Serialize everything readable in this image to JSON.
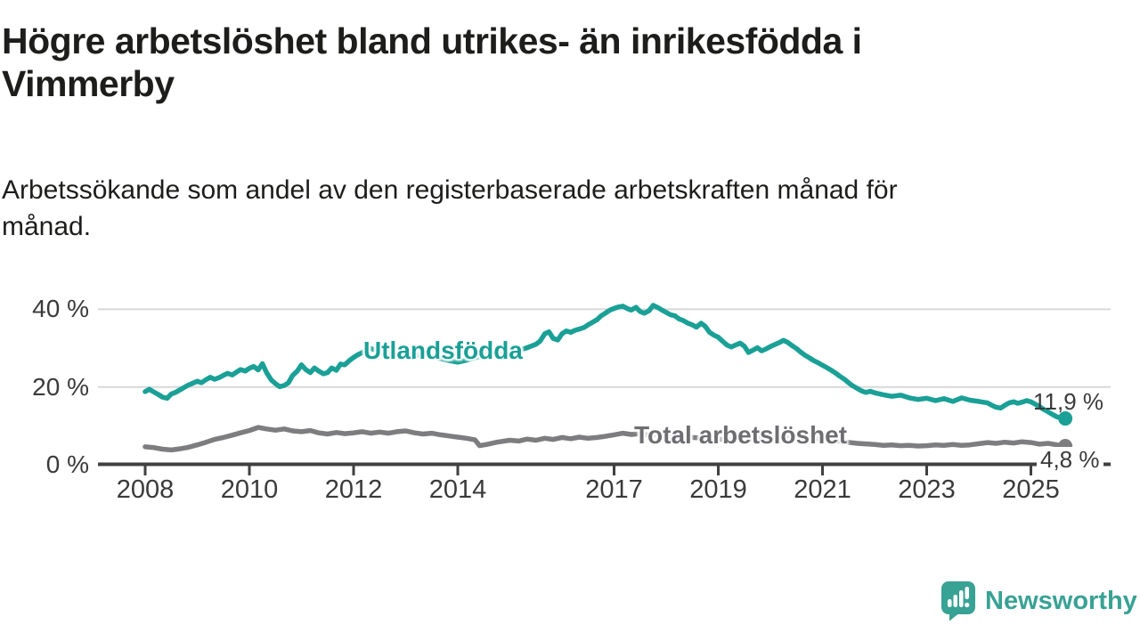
{
  "header": {
    "title_lines": [
      "Högre arbetslöshet bland utrikes- än inrikesfödda i",
      "Vimmerby"
    ],
    "subtitle_lines": [
      "Arbetssökande som andel av den registerbaserade arbetskraften månad för",
      "månad."
    ]
  },
  "footer": {
    "brand": "Newsworthy",
    "brand_color": "#38a294"
  },
  "chart_data": {
    "type": "line",
    "title": "Högre arbetslöshet bland utrikes- än inrikesfödda i Vimmerby",
    "subtitle": "Arbetssökande som andel av den registerbaserade arbetskraften månad för månad.",
    "unit": "%",
    "grid": "horizontal",
    "x_axis": {
      "ticks": [
        2008,
        2010,
        2012,
        2014,
        2017,
        2019,
        2021,
        2023,
        2025
      ],
      "range": [
        2007.6,
        2026.2
      ]
    },
    "y_axis": {
      "ticks": [
        {
          "label": "0 %",
          "value": 0
        },
        {
          "label": "20 %",
          "value": 20
        },
        {
          "label": "40 %",
          "value": 40
        }
      ],
      "range": [
        0,
        44
      ]
    },
    "colors": {
      "axis": "#404040",
      "gridline": "#d8d8d8",
      "text": "#3a3a3a"
    },
    "series": [
      {
        "name": "Utlandsfödda",
        "color": "#1aa096",
        "end_label": "11,9 %",
        "end_value": 11.9,
        "points": [
          [
            2008.0,
            18.8
          ],
          [
            2008.08,
            19.4
          ],
          [
            2008.17,
            18.7
          ],
          [
            2008.25,
            18.1
          ],
          [
            2008.33,
            17.4
          ],
          [
            2008.42,
            17.1
          ],
          [
            2008.5,
            18.2
          ],
          [
            2008.58,
            18.6
          ],
          [
            2008.67,
            19.3
          ],
          [
            2008.75,
            19.9
          ],
          [
            2008.83,
            20.5
          ],
          [
            2008.92,
            21.0
          ],
          [
            2009.0,
            21.5
          ],
          [
            2009.08,
            21.1
          ],
          [
            2009.17,
            21.9
          ],
          [
            2009.25,
            22.5
          ],
          [
            2009.33,
            22.0
          ],
          [
            2009.42,
            22.4
          ],
          [
            2009.5,
            23.0
          ],
          [
            2009.58,
            23.5
          ],
          [
            2009.67,
            23.1
          ],
          [
            2009.75,
            23.8
          ],
          [
            2009.83,
            24.5
          ],
          [
            2009.92,
            24.1
          ],
          [
            2010.0,
            24.8
          ],
          [
            2010.08,
            25.3
          ],
          [
            2010.17,
            24.4
          ],
          [
            2010.25,
            26.0
          ],
          [
            2010.33,
            23.7
          ],
          [
            2010.42,
            21.8
          ],
          [
            2010.5,
            20.9
          ],
          [
            2010.58,
            20.1
          ],
          [
            2010.67,
            20.4
          ],
          [
            2010.75,
            21.1
          ],
          [
            2010.83,
            23.0
          ],
          [
            2010.92,
            24.1
          ],
          [
            2011.0,
            25.7
          ],
          [
            2011.08,
            24.5
          ],
          [
            2011.17,
            23.7
          ],
          [
            2011.25,
            24.9
          ],
          [
            2011.33,
            24.1
          ],
          [
            2011.42,
            23.4
          ],
          [
            2011.5,
            23.7
          ],
          [
            2011.58,
            24.9
          ],
          [
            2011.67,
            24.3
          ],
          [
            2011.75,
            25.9
          ],
          [
            2011.83,
            25.7
          ],
          [
            2011.92,
            26.8
          ],
          [
            2012.0,
            27.6
          ],
          [
            2012.08,
            28.3
          ],
          [
            2012.17,
            28.9
          ],
          [
            2012.25,
            29.3
          ],
          [
            2012.33,
            29.9
          ],
          [
            2012.42,
            29.5
          ],
          [
            2012.5,
            28.9
          ],
          [
            2012.58,
            29.2
          ],
          [
            2012.67,
            28.6
          ],
          [
            2012.75,
            29.0
          ],
          [
            2012.83,
            28.5
          ],
          [
            2012.92,
            28.2
          ],
          [
            2013.0,
            28.6
          ],
          [
            2013.17,
            28.1
          ],
          [
            2013.33,
            28.4
          ],
          [
            2013.5,
            27.8
          ],
          [
            2013.67,
            27.3
          ],
          [
            2013.83,
            26.8
          ],
          [
            2014.0,
            26.4
          ],
          [
            2014.17,
            26.9
          ],
          [
            2014.33,
            27.5
          ],
          [
            2014.5,
            28.1
          ],
          [
            2014.67,
            28.7
          ],
          [
            2014.83,
            29.2
          ],
          [
            2015.0,
            28.8
          ],
          [
            2015.17,
            29.4
          ],
          [
            2015.33,
            30.1
          ],
          [
            2015.5,
            31.0
          ],
          [
            2015.58,
            31.8
          ],
          [
            2015.67,
            33.7
          ],
          [
            2015.75,
            34.2
          ],
          [
            2015.83,
            32.5
          ],
          [
            2015.92,
            32.1
          ],
          [
            2016.0,
            33.7
          ],
          [
            2016.08,
            34.4
          ],
          [
            2016.17,
            34.1
          ],
          [
            2016.25,
            34.6
          ],
          [
            2016.33,
            34.9
          ],
          [
            2016.42,
            35.3
          ],
          [
            2016.5,
            36.0
          ],
          [
            2016.58,
            36.6
          ],
          [
            2016.67,
            37.3
          ],
          [
            2016.75,
            38.3
          ],
          [
            2016.83,
            39.0
          ],
          [
            2016.92,
            39.8
          ],
          [
            2017.0,
            40.2
          ],
          [
            2017.08,
            40.6
          ],
          [
            2017.17,
            40.8
          ],
          [
            2017.25,
            40.2
          ],
          [
            2017.33,
            39.8
          ],
          [
            2017.42,
            40.5
          ],
          [
            2017.5,
            39.4
          ],
          [
            2017.58,
            39.0
          ],
          [
            2017.67,
            39.6
          ],
          [
            2017.75,
            41.0
          ],
          [
            2017.83,
            40.5
          ],
          [
            2017.92,
            39.8
          ],
          [
            2018.0,
            39.2
          ],
          [
            2018.08,
            38.6
          ],
          [
            2018.17,
            38.3
          ],
          [
            2018.25,
            37.5
          ],
          [
            2018.33,
            37.1
          ],
          [
            2018.42,
            36.4
          ],
          [
            2018.5,
            36.0
          ],
          [
            2018.58,
            35.4
          ],
          [
            2018.67,
            36.4
          ],
          [
            2018.75,
            35.6
          ],
          [
            2018.83,
            34.1
          ],
          [
            2018.92,
            33.3
          ],
          [
            2019.0,
            32.8
          ],
          [
            2019.08,
            31.8
          ],
          [
            2019.17,
            30.8
          ],
          [
            2019.25,
            30.3
          ],
          [
            2019.33,
            30.8
          ],
          [
            2019.42,
            31.3
          ],
          [
            2019.5,
            30.5
          ],
          [
            2019.58,
            28.9
          ],
          [
            2019.67,
            29.5
          ],
          [
            2019.75,
            30.1
          ],
          [
            2019.83,
            29.3
          ],
          [
            2019.92,
            29.8
          ],
          [
            2020.0,
            30.4
          ],
          [
            2020.08,
            30.9
          ],
          [
            2020.17,
            31.4
          ],
          [
            2020.25,
            32.0
          ],
          [
            2020.33,
            31.5
          ],
          [
            2020.42,
            30.6
          ],
          [
            2020.5,
            29.9
          ],
          [
            2020.58,
            29.0
          ],
          [
            2020.67,
            28.1
          ],
          [
            2020.75,
            27.5
          ],
          [
            2020.83,
            26.8
          ],
          [
            2020.92,
            26.2
          ],
          [
            2021.0,
            25.6
          ],
          [
            2021.08,
            25.0
          ],
          [
            2021.17,
            24.3
          ],
          [
            2021.25,
            23.6
          ],
          [
            2021.33,
            22.8
          ],
          [
            2021.42,
            22.0
          ],
          [
            2021.5,
            21.1
          ],
          [
            2021.58,
            20.3
          ],
          [
            2021.67,
            19.6
          ],
          [
            2021.75,
            19.0
          ],
          [
            2021.83,
            18.6
          ],
          [
            2021.92,
            18.9
          ],
          [
            2022.0,
            18.5
          ],
          [
            2022.17,
            18.0
          ],
          [
            2022.33,
            17.6
          ],
          [
            2022.5,
            17.9
          ],
          [
            2022.67,
            17.2
          ],
          [
            2022.83,
            16.8
          ],
          [
            2023.0,
            17.1
          ],
          [
            2023.17,
            16.5
          ],
          [
            2023.33,
            17.0
          ],
          [
            2023.5,
            16.3
          ],
          [
            2023.67,
            17.2
          ],
          [
            2023.83,
            16.6
          ],
          [
            2024.0,
            16.3
          ],
          [
            2024.17,
            15.9
          ],
          [
            2024.25,
            15.3
          ],
          [
            2024.33,
            14.8
          ],
          [
            2024.42,
            14.6
          ],
          [
            2024.5,
            15.3
          ],
          [
            2024.58,
            15.9
          ],
          [
            2024.67,
            16.2
          ],
          [
            2024.75,
            15.8
          ],
          [
            2024.83,
            16.1
          ],
          [
            2024.92,
            16.5
          ],
          [
            2025.0,
            16.2
          ],
          [
            2025.08,
            15.6
          ],
          [
            2025.17,
            14.9
          ],
          [
            2025.25,
            14.2
          ],
          [
            2025.33,
            13.6
          ],
          [
            2025.42,
            12.9
          ],
          [
            2025.5,
            12.3
          ],
          [
            2025.66,
            11.9
          ]
        ]
      },
      {
        "name": "Total arbetslöshet",
        "color": "#7d7d80",
        "end_label": "4,8 %",
        "end_value": 4.8,
        "points": [
          [
            2008.0,
            4.6
          ],
          [
            2008.17,
            4.4
          ],
          [
            2008.33,
            4.0
          ],
          [
            2008.5,
            3.8
          ],
          [
            2008.67,
            4.1
          ],
          [
            2008.83,
            4.5
          ],
          [
            2009.0,
            5.1
          ],
          [
            2009.17,
            5.8
          ],
          [
            2009.33,
            6.5
          ],
          [
            2009.5,
            7.0
          ],
          [
            2009.67,
            7.6
          ],
          [
            2009.83,
            8.2
          ],
          [
            2010.0,
            8.8
          ],
          [
            2010.17,
            9.6
          ],
          [
            2010.33,
            9.2
          ],
          [
            2010.5,
            8.9
          ],
          [
            2010.67,
            9.2
          ],
          [
            2010.83,
            8.7
          ],
          [
            2011.0,
            8.5
          ],
          [
            2011.17,
            8.8
          ],
          [
            2011.33,
            8.2
          ],
          [
            2011.5,
            7.9
          ],
          [
            2011.67,
            8.3
          ],
          [
            2011.83,
            8.0
          ],
          [
            2012.0,
            8.2
          ],
          [
            2012.17,
            8.5
          ],
          [
            2012.33,
            8.1
          ],
          [
            2012.5,
            8.4
          ],
          [
            2012.67,
            8.1
          ],
          [
            2012.83,
            8.5
          ],
          [
            2013.0,
            8.7
          ],
          [
            2013.17,
            8.2
          ],
          [
            2013.33,
            7.9
          ],
          [
            2013.5,
            8.1
          ],
          [
            2013.67,
            7.7
          ],
          [
            2013.83,
            7.4
          ],
          [
            2014.0,
            7.1
          ],
          [
            2014.17,
            6.8
          ],
          [
            2014.33,
            6.4
          ],
          [
            2014.42,
            4.9
          ],
          [
            2014.58,
            5.3
          ],
          [
            2014.75,
            5.8
          ],
          [
            2015.0,
            6.3
          ],
          [
            2015.17,
            6.1
          ],
          [
            2015.33,
            6.6
          ],
          [
            2015.5,
            6.3
          ],
          [
            2015.67,
            6.8
          ],
          [
            2015.83,
            6.5
          ],
          [
            2016.0,
            7.0
          ],
          [
            2016.17,
            6.7
          ],
          [
            2016.33,
            7.1
          ],
          [
            2016.5,
            6.8
          ],
          [
            2016.67,
            7.0
          ],
          [
            2016.83,
            7.3
          ],
          [
            2017.0,
            7.7
          ],
          [
            2017.17,
            8.1
          ],
          [
            2017.33,
            7.8
          ],
          [
            2017.5,
            8.0
          ],
          [
            2017.67,
            7.6
          ],
          [
            2017.83,
            7.8
          ],
          [
            2018.0,
            7.4
          ],
          [
            2018.33,
            7.1
          ],
          [
            2018.67,
            6.9
          ],
          [
            2019.0,
            6.6
          ],
          [
            2019.33,
            6.4
          ],
          [
            2019.67,
            6.7
          ],
          [
            2020.0,
            7.0
          ],
          [
            2020.33,
            7.5
          ],
          [
            2020.67,
            7.1
          ],
          [
            2021.0,
            6.5
          ],
          [
            2021.33,
            6.0
          ],
          [
            2021.67,
            5.5
          ],
          [
            2022.0,
            5.2
          ],
          [
            2022.17,
            5.0
          ],
          [
            2022.33,
            5.1
          ],
          [
            2022.5,
            4.9
          ],
          [
            2022.67,
            5.0
          ],
          [
            2022.83,
            4.8
          ],
          [
            2023.0,
            4.9
          ],
          [
            2023.17,
            5.1
          ],
          [
            2023.33,
            5.0
          ],
          [
            2023.5,
            5.2
          ],
          [
            2023.67,
            5.0
          ],
          [
            2023.83,
            5.1
          ],
          [
            2024.0,
            5.4
          ],
          [
            2024.17,
            5.7
          ],
          [
            2024.33,
            5.5
          ],
          [
            2024.5,
            5.8
          ],
          [
            2024.67,
            5.6
          ],
          [
            2024.83,
            5.9
          ],
          [
            2025.0,
            5.7
          ],
          [
            2025.17,
            5.3
          ],
          [
            2025.33,
            5.5
          ],
          [
            2025.5,
            5.1
          ],
          [
            2025.66,
            4.8
          ]
        ]
      }
    ]
  }
}
